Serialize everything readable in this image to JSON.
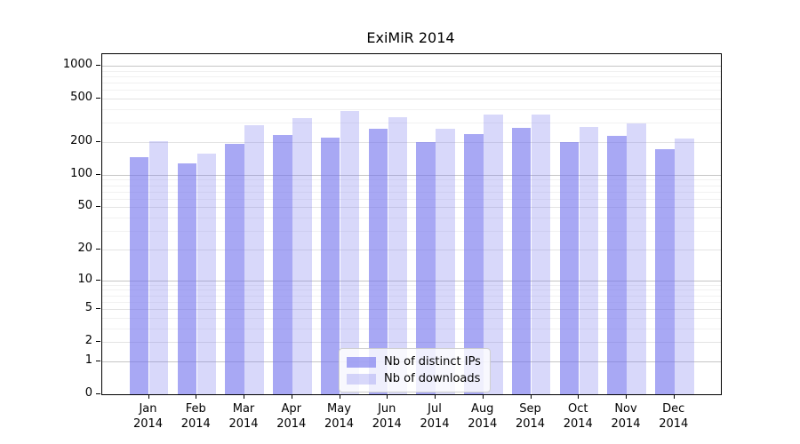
{
  "chart_data": {
    "type": "bar",
    "title": "ExiMiR 2014",
    "scale": "log1p",
    "xlabel": "",
    "ylabel": "",
    "x_tick_months": [
      "Jan",
      "Feb",
      "Mar",
      "Apr",
      "May",
      "Jun",
      "Jul",
      "Aug",
      "Sep",
      "Oct",
      "Nov",
      "Dec"
    ],
    "x_tick_year": "2014",
    "series": [
      {
        "name": "Nb of distinct IPs",
        "fill_opacity": 0.62,
        "values": [
          145,
          127,
          193,
          233,
          220,
          266,
          200,
          238,
          268,
          200,
          227,
          172
        ]
      },
      {
        "name": "Nb of downloads",
        "fill_opacity": 0.28,
        "values": [
          205,
          158,
          285,
          330,
          386,
          336,
          264,
          355,
          360,
          277,
          297,
          217
        ]
      }
    ],
    "bar_base_color": "#7373ee",
    "yticks_labeled": [
      0,
      1,
      2,
      5,
      10,
      20,
      50,
      100,
      200,
      500,
      1000
    ],
    "yticks_minor": [
      3,
      4,
      6,
      7,
      8,
      9,
      30,
      40,
      60,
      70,
      80,
      90,
      300,
      400,
      600,
      700,
      800,
      900
    ],
    "ylim": [
      0,
      1275
    ],
    "grid": "horizontal",
    "gridline_colors": {
      "power_of_ten": "#c6c6c6",
      "labeled": "#e3e3e3",
      "minor": "#f1f1f1"
    },
    "legend": {
      "position": "inside-bottom-center",
      "items": [
        {
          "label": "Nb of distinct IPs",
          "series_index": 0
        },
        {
          "label": "Nb of downloads",
          "series_index": 1
        }
      ]
    }
  }
}
